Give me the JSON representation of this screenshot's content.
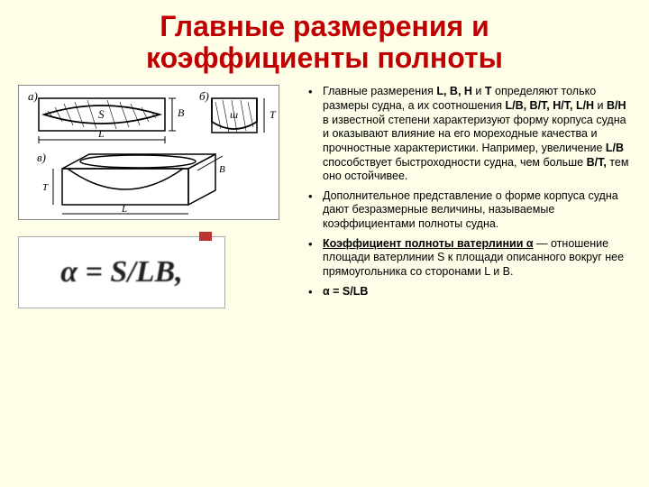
{
  "title_line1": "Главные размерения и",
  "title_line2": "коэффициенты полноты",
  "formula_text": "α = S/LB,",
  "bullets": [
    {
      "html": "Главные размерения <b>L, B, H</b> и <b>T</b> определяют только размеры судна, а их соотношения <b>L/B, B/T, H/T, L/H</b> и <b>B/H</b> в известной степени характеризуют форму корпуса судна и оказывают влияние на его мореходные качества и прочностные характеристики. Например, увеличение <b>L/B</b> способствует быстроходности судна, чем больше <b>B/T,</b> тем оно остойчивее."
    },
    {
      "html": "Дополнительное представление о форме корпуса судна дают безразмерные величины, называемые коэффициентами полноты судна."
    },
    {
      "html": "<b><u>Коэффициент полноты ватерлинии α</u></b> — отношение площади ватерлинии S к площади описанного вокруг нее прямоугольника со сторонами L и B."
    },
    {
      "html": "<b>α  = S/LB</b>"
    }
  ],
  "diagram": {
    "labels": {
      "a": "a)",
      "b": "б)",
      "v": "в)",
      "s": "S",
      "l": "L",
      "b_dim": "B",
      "t": "T",
      "shaft": "ш"
    }
  },
  "colors": {
    "bg": "#fdfde8",
    "title": "#c00000",
    "text": "#000000"
  }
}
